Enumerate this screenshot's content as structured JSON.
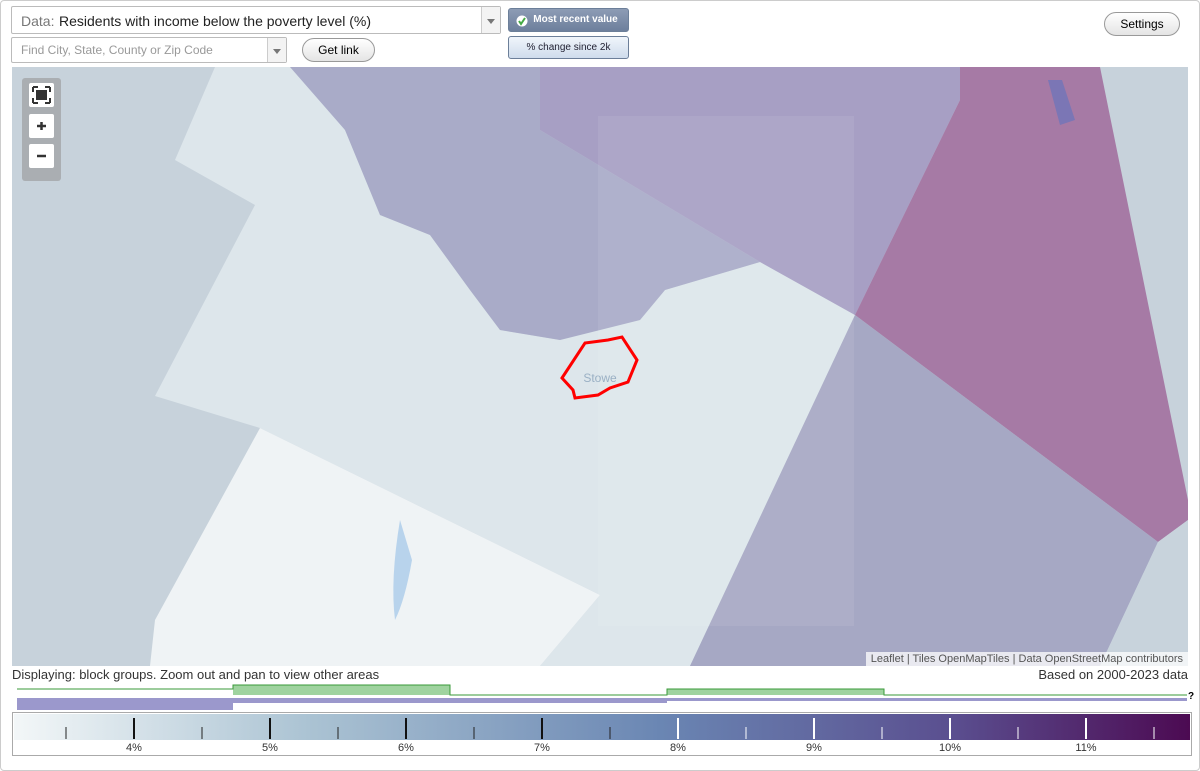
{
  "header": {
    "data_label": "Data:",
    "data_value": "Residents with income below the poverty level (%)",
    "most_recent": "Most recent value",
    "percent_change": "% change since 2k",
    "search_placeholder": "Find City, State, County or Zip Code",
    "get_link": "Get link",
    "settings": "Settings"
  },
  "map": {
    "place_label": "Stowe",
    "attribution": "Leaflet | Tiles OpenMapTiles | Data OpenStreetMap contributors"
  },
  "footer": {
    "displaying": "Displaying: block groups. Zoom out and pan to view other areas",
    "based_on": "Based on 2000-2023 data",
    "help": "?"
  },
  "legend": {
    "labels": [
      "4%",
      "5%",
      "6%",
      "7%",
      "8%",
      "9%",
      "10%",
      "11%"
    ]
  }
}
